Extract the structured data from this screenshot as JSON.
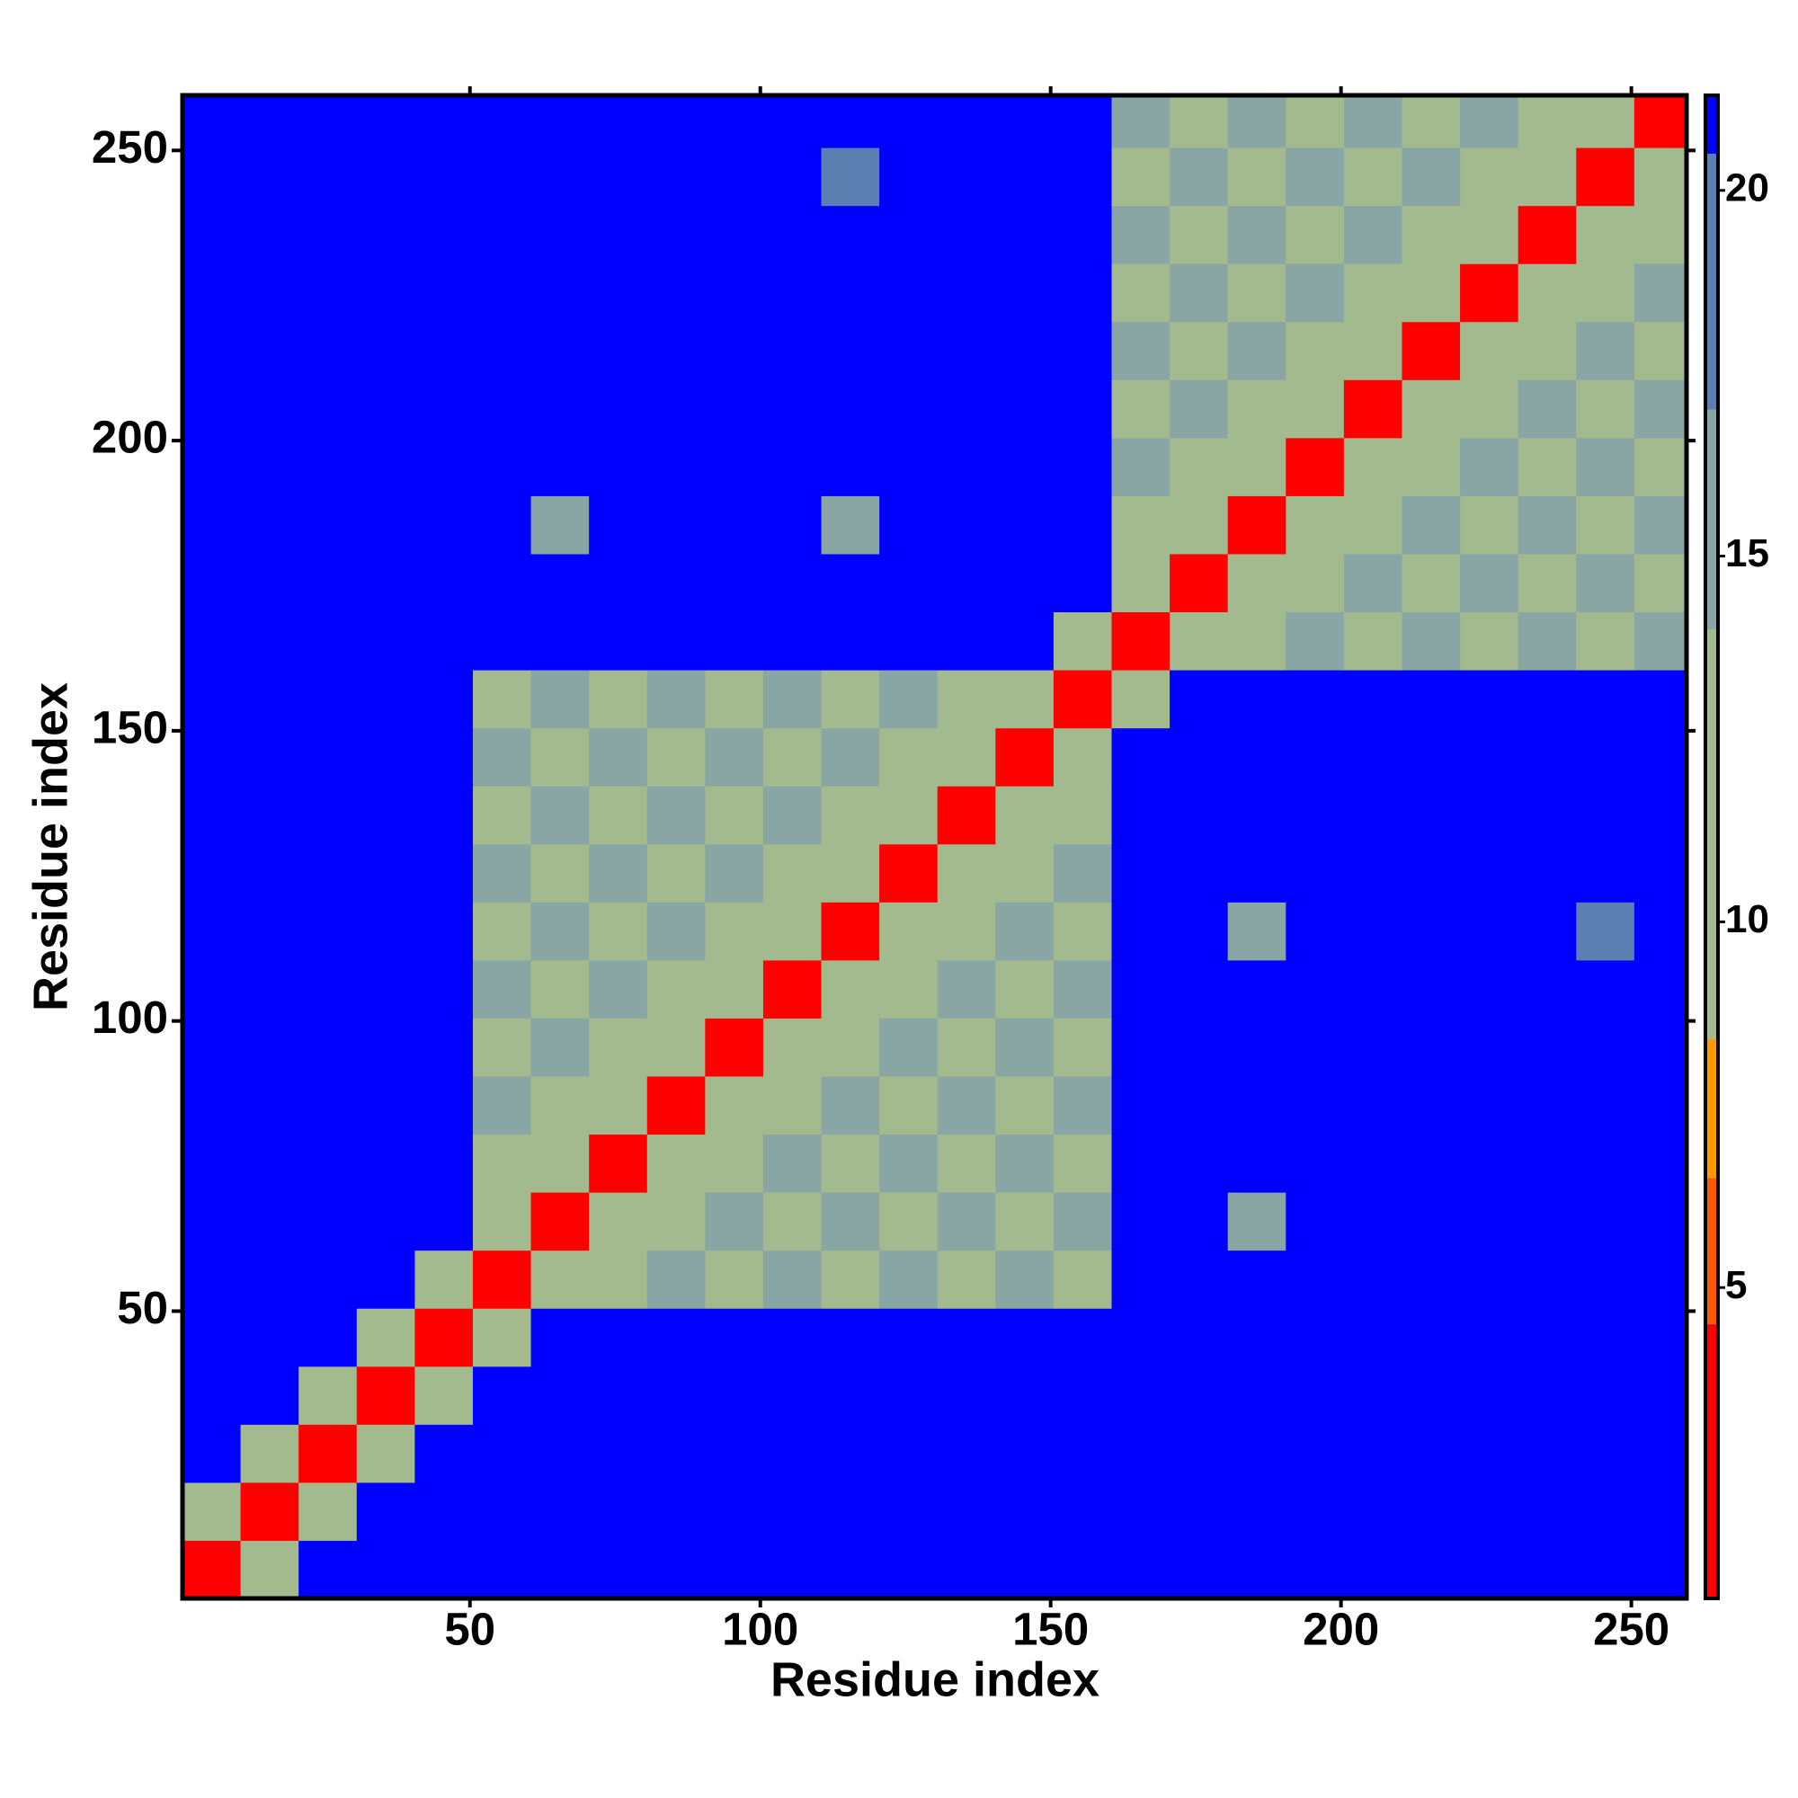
{
  "chart_data": {
    "type": "heatmap",
    "xlabel": "Residue index",
    "ylabel": "Residue index",
    "xlim": [
      0.5,
      259.5
    ],
    "ylim": [
      0.5,
      259.5
    ],
    "xticks": [
      50,
      100,
      150,
      200,
      250
    ],
    "yticks": [
      50,
      100,
      150,
      200,
      250
    ],
    "xbins": [
      0.5,
      10.5,
      20.5,
      30.5,
      40.5,
      50.5,
      60.5,
      70.5,
      80.5,
      90.5,
      100.5,
      110.5,
      120.5,
      130.5,
      140.5,
      150.5,
      160.5,
      170.5,
      180.5,
      190.5,
      200.5,
      210.5,
      220.5,
      230.5,
      240.5,
      250.5,
      260.5
    ],
    "ybins": [
      0.5,
      10.5,
      20.5,
      30.5,
      40.5,
      50.5,
      60.5,
      70.5,
      80.5,
      90.5,
      100.5,
      110.5,
      120.5,
      130.5,
      140.5,
      150.5,
      160.5,
      170.5,
      180.5,
      190.5,
      200.5,
      210.5,
      220.5,
      230.5,
      240.5,
      250.5,
      260.5
    ],
    "z": [
      [
        4,
        14,
        21,
        21,
        21,
        21,
        21,
        21,
        21,
        21,
        21,
        21,
        21,
        21,
        21,
        21,
        21,
        21,
        21,
        21,
        21,
        21,
        21,
        21,
        21,
        21
      ],
      [
        14,
        4,
        14,
        21,
        21,
        21,
        21,
        21,
        21,
        21,
        21,
        21,
        21,
        21,
        21,
        21,
        21,
        21,
        21,
        21,
        21,
        21,
        21,
        21,
        21,
        21
      ],
      [
        21,
        14,
        4,
        14,
        21,
        21,
        21,
        21,
        21,
        21,
        21,
        21,
        21,
        21,
        21,
        21,
        21,
        21,
        21,
        21,
        21,
        21,
        21,
        21,
        21,
        21
      ],
      [
        21,
        21,
        14,
        4,
        14,
        21,
        21,
        21,
        21,
        21,
        21,
        21,
        21,
        21,
        21,
        21,
        21,
        21,
        21,
        21,
        21,
        21,
        21,
        21,
        21,
        21
      ],
      [
        21,
        21,
        21,
        14,
        4,
        10,
        21,
        21,
        21,
        21,
        21,
        21,
        21,
        21,
        21,
        21,
        21,
        21,
        21,
        21,
        21,
        21,
        21,
        21,
        21,
        21
      ],
      [
        21,
        21,
        21,
        21,
        10,
        4,
        10,
        12,
        15,
        12,
        15,
        12,
        15,
        12,
        15,
        12,
        21,
        21,
        21,
        21,
        21,
        21,
        21,
        21,
        21,
        21
      ],
      [
        21,
        21,
        21,
        21,
        21,
        10,
        4,
        10,
        12,
        15,
        12,
        15,
        12,
        15,
        12,
        15,
        21,
        21,
        17,
        21,
        21,
        21,
        21,
        21,
        21,
        21
      ],
      [
        21,
        21,
        21,
        21,
        21,
        12,
        10,
        4,
        10,
        12,
        15,
        12,
        15,
        12,
        15,
        12,
        21,
        21,
        21,
        21,
        21,
        21,
        21,
        21,
        21,
        21
      ],
      [
        21,
        21,
        21,
        21,
        21,
        15,
        12,
        10,
        4,
        10,
        12,
        15,
        12,
        15,
        12,
        15,
        21,
        21,
        21,
        21,
        21,
        21,
        21,
        21,
        21,
        21
      ],
      [
        21,
        21,
        21,
        21,
        21,
        12,
        15,
        12,
        10,
        4,
        10,
        12,
        15,
        12,
        15,
        12,
        21,
        21,
        21,
        21,
        21,
        21,
        21,
        21,
        21,
        21
      ],
      [
        21,
        21,
        21,
        21,
        21,
        15,
        12,
        15,
        12,
        10,
        4,
        10,
        12,
        15,
        12,
        15,
        21,
        21,
        21,
        21,
        21,
        21,
        21,
        21,
        21,
        21
      ],
      [
        21,
        21,
        21,
        21,
        21,
        12,
        15,
        12,
        15,
        12,
        10,
        4,
        10,
        12,
        15,
        12,
        21,
        21,
        16,
        21,
        21,
        21,
        21,
        21,
        19,
        21
      ],
      [
        21,
        21,
        21,
        21,
        21,
        15,
        12,
        15,
        12,
        15,
        12,
        10,
        4,
        10,
        12,
        15,
        21,
        21,
        21,
        21,
        21,
        21,
        21,
        21,
        21,
        21
      ],
      [
        21,
        21,
        21,
        21,
        21,
        12,
        15,
        12,
        15,
        12,
        15,
        12,
        10,
        4,
        10,
        12,
        21,
        21,
        21,
        21,
        21,
        21,
        21,
        21,
        21,
        21
      ],
      [
        21,
        21,
        21,
        21,
        21,
        15,
        12,
        15,
        12,
        15,
        12,
        15,
        12,
        10,
        4,
        10,
        21,
        21,
        21,
        21,
        21,
        21,
        21,
        21,
        21,
        21
      ],
      [
        21,
        21,
        21,
        21,
        21,
        12,
        15,
        12,
        15,
        12,
        15,
        12,
        15,
        12,
        10,
        4,
        10,
        21,
        21,
        21,
        21,
        21,
        21,
        21,
        21,
        21
      ],
      [
        21,
        21,
        21,
        21,
        21,
        21,
        21,
        21,
        21,
        21,
        21,
        21,
        21,
        21,
        21,
        10,
        4,
        10,
        12,
        15,
        12,
        15,
        12,
        15,
        12,
        15
      ],
      [
        21,
        21,
        21,
        21,
        21,
        21,
        21,
        21,
        21,
        21,
        21,
        21,
        21,
        21,
        21,
        21,
        10,
        4,
        10,
        12,
        15,
        12,
        15,
        12,
        15,
        12
      ],
      [
        21,
        21,
        21,
        21,
        21,
        21,
        17,
        21,
        21,
        21,
        21,
        16,
        21,
        21,
        21,
        21,
        12,
        10,
        4,
        10,
        12,
        15,
        12,
        15,
        12,
        15
      ],
      [
        21,
        21,
        21,
        21,
        21,
        21,
        21,
        21,
        21,
        21,
        21,
        21,
        21,
        21,
        21,
        21,
        15,
        12,
        10,
        4,
        10,
        12,
        15,
        12,
        15,
        12
      ],
      [
        21,
        21,
        21,
        21,
        21,
        21,
        21,
        21,
        21,
        21,
        21,
        21,
        21,
        21,
        21,
        21,
        12,
        15,
        12,
        10,
        4,
        10,
        12,
        15,
        12,
        15
      ],
      [
        21,
        21,
        21,
        21,
        21,
        21,
        21,
        21,
        21,
        21,
        21,
        21,
        21,
        21,
        21,
        21,
        15,
        12,
        15,
        12,
        10,
        4,
        10,
        12,
        15,
        12
      ],
      [
        21,
        21,
        21,
        21,
        21,
        21,
        21,
        21,
        21,
        21,
        21,
        21,
        21,
        21,
        21,
        21,
        12,
        15,
        12,
        15,
        12,
        10,
        4,
        10,
        12,
        15
      ],
      [
        21,
        21,
        21,
        21,
        21,
        21,
        21,
        21,
        21,
        21,
        21,
        21,
        21,
        21,
        21,
        21,
        15,
        12,
        15,
        12,
        15,
        12,
        10,
        4,
        10,
        12
      ],
      [
        21,
        21,
        21,
        21,
        21,
        21,
        21,
        21,
        21,
        21,
        21,
        18,
        21,
        21,
        21,
        21,
        12,
        15,
        12,
        15,
        12,
        15,
        12,
        10,
        4,
        10
      ],
      [
        21,
        21,
        21,
        21,
        21,
        21,
        21,
        21,
        21,
        21,
        21,
        21,
        21,
        21,
        21,
        21,
        15,
        12,
        15,
        12,
        15,
        12,
        15,
        12,
        10,
        4
      ]
    ],
    "zlim": [
      0.75,
      21.3
    ],
    "zticks": [
      5,
      10,
      15,
      20
    ],
    "colorscale": [
      {
        "from": 0.75,
        "to": 4.5,
        "color": "#ff0000"
      },
      {
        "from": 4.5,
        "to": 6.5,
        "color": "#ff5a00"
      },
      {
        "from": 6.5,
        "to": 8.4,
        "color": "#ff9900"
      },
      {
        "from": 8.4,
        "to": 14,
        "color": "#a3b98e"
      },
      {
        "from": 14,
        "to": 17,
        "color": "#8aa6a4"
      },
      {
        "from": 17,
        "to": 20.5,
        "color": "#5b7fb0"
      },
      {
        "from": 20.5,
        "to": 21.3,
        "color": "#0000ff"
      }
    ]
  }
}
